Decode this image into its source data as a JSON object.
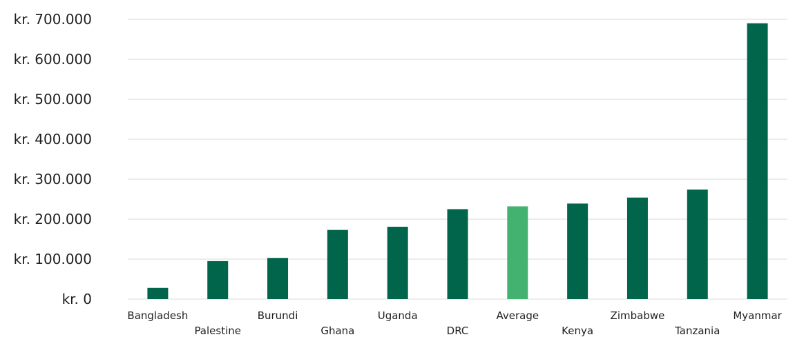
{
  "chart_data": {
    "type": "bar",
    "categories": [
      "Bangladesh",
      "Palestine",
      "Burundi",
      "Ghana",
      "Uganda",
      "DRC",
      "Average",
      "Kenya",
      "Zimbabwe",
      "Tanzania",
      "Myanmar"
    ],
    "values": [
      28000,
      95000,
      103000,
      173000,
      181000,
      225000,
      232000,
      239000,
      254000,
      274000,
      690000
    ],
    "ylim": [
      0,
      700000
    ],
    "yticks": [
      0,
      100000,
      200000,
      300000,
      400000,
      500000,
      600000,
      700000
    ],
    "ytick_labels": [
      "kr. 0",
      "kr. 100.000",
      "kr. 200.000",
      "kr. 300.000",
      "kr. 400.000",
      "kr. 500.000",
      "kr. 600.000",
      "kr. 700.000"
    ],
    "grid": true,
    "legend": "none",
    "colors": {
      "bar": "#00654a",
      "highlight": "#43b16f",
      "grid": "#d9d9d9"
    },
    "highlight_category": "Average"
  }
}
